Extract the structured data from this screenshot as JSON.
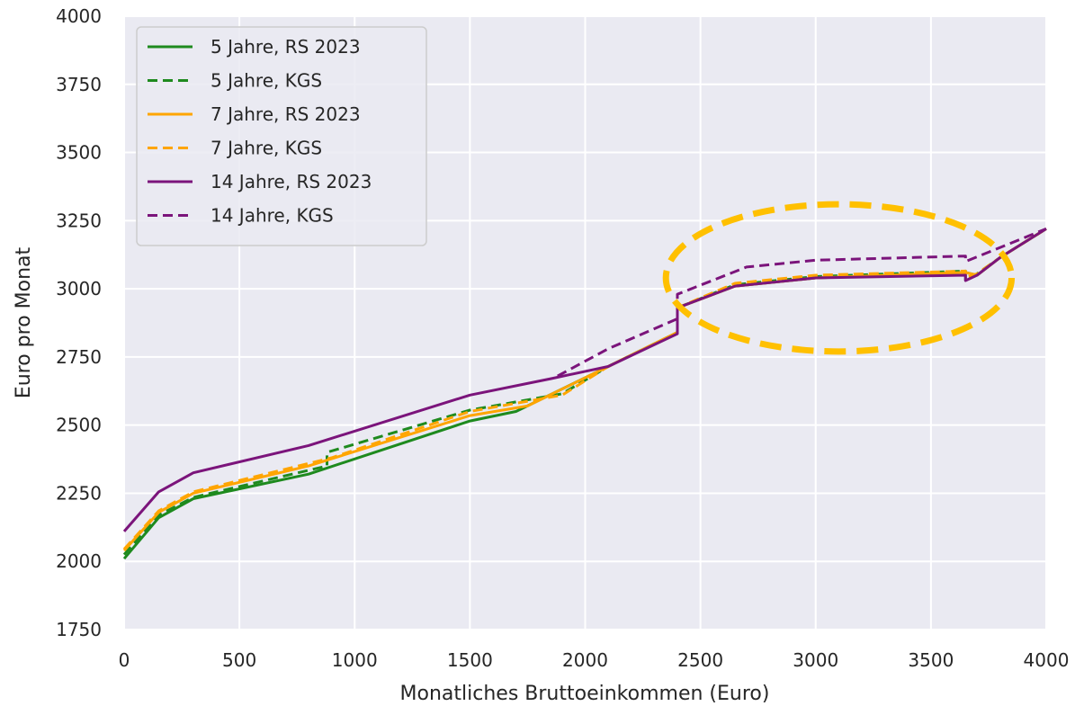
{
  "chart_data": {
    "type": "line",
    "title": "",
    "xlabel": "Monatliches Bruttoeinkommen (Euro)",
    "ylabel": "Euro pro Monat",
    "xlim": [
      0,
      4000
    ],
    "ylim": [
      1750,
      4000
    ],
    "xticks": [
      "0",
      "500",
      "1000",
      "1500",
      "2000",
      "2500",
      "3000",
      "3500",
      "4000"
    ],
    "yticks": [
      "1750",
      "2000",
      "2250",
      "2500",
      "2750",
      "3000",
      "3250",
      "3500",
      "3750",
      "4000"
    ],
    "grid": true,
    "background": "#eaeaf2",
    "legend_position": "top-left",
    "highlight_ellipse": {
      "color": "#ffc000",
      "center": [
        3100,
        3040
      ],
      "radii": [
        750,
        270
      ]
    },
    "series": [
      {
        "name": "5 Jahre, RS 2023",
        "color": "#1e8a1e",
        "dashed": false,
        "x": [
          0,
          150,
          300,
          800,
          1500,
          1700,
          2100,
          2400,
          2400,
          2650,
          3000,
          3650,
          3700,
          3800,
          4000
        ],
        "y": [
          2010,
          2160,
          2230,
          2320,
          2515,
          2550,
          2715,
          2840,
          2930,
          3010,
          3040,
          3060,
          3050,
          3115,
          3220
        ]
      },
      {
        "name": "5 Jahre, KGS",
        "color": "#1e8a1e",
        "dashed": true,
        "x": [
          0,
          150,
          300,
          880,
          880,
          1500,
          1900,
          2100,
          2400,
          2400,
          2650,
          3000,
          3650,
          3650,
          3700,
          3800,
          4000
        ],
        "y": [
          2025,
          2170,
          2235,
          2350,
          2400,
          2555,
          2615,
          2715,
          2840,
          2930,
          3015,
          3045,
          3065,
          3030,
          3055,
          3115,
          3220
        ]
      },
      {
        "name": "7 Jahre, RS 2023",
        "color": "#ffa500",
        "dashed": false,
        "x": [
          0,
          150,
          300,
          800,
          1500,
          1750,
          2100,
          2400,
          2400,
          2650,
          3000,
          3650,
          3700,
          3800,
          4000
        ],
        "y": [
          2040,
          2180,
          2250,
          2350,
          2535,
          2570,
          2715,
          2840,
          2930,
          3010,
          3040,
          3060,
          3050,
          3115,
          3220
        ]
      },
      {
        "name": "7 Jahre, KGS",
        "color": "#ffa500",
        "dashed": true,
        "x": [
          0,
          150,
          300,
          900,
          1500,
          1900,
          2100,
          2400,
          2400,
          2650,
          3000,
          3650,
          3650,
          3700,
          3800,
          4000
        ],
        "y": [
          2045,
          2185,
          2255,
          2380,
          2550,
          2610,
          2715,
          2840,
          2930,
          3020,
          3050,
          3065,
          3040,
          3055,
          3115,
          3220
        ]
      },
      {
        "name": "14 Jahre, RS 2023",
        "color": "#7b147b",
        "dashed": false,
        "x": [
          0,
          150,
          300,
          800,
          1500,
          1850,
          2100,
          2400,
          2400,
          2650,
          3000,
          3650,
          3650,
          3700,
          3800,
          4000
        ],
        "y": [
          2110,
          2255,
          2325,
          2425,
          2610,
          2670,
          2715,
          2835,
          2930,
          3010,
          3040,
          3050,
          3030,
          3050,
          3115,
          3220
        ]
      },
      {
        "name": "14 Jahre, KGS",
        "color": "#7b147b",
        "dashed": true,
        "x": [
          1880,
          2100,
          2400,
          2400,
          2700,
          3000,
          3650,
          3650,
          4000
        ],
        "y": [
          2680,
          2780,
          2890,
          2980,
          3080,
          3105,
          3120,
          3100,
          3220
        ]
      }
    ]
  }
}
